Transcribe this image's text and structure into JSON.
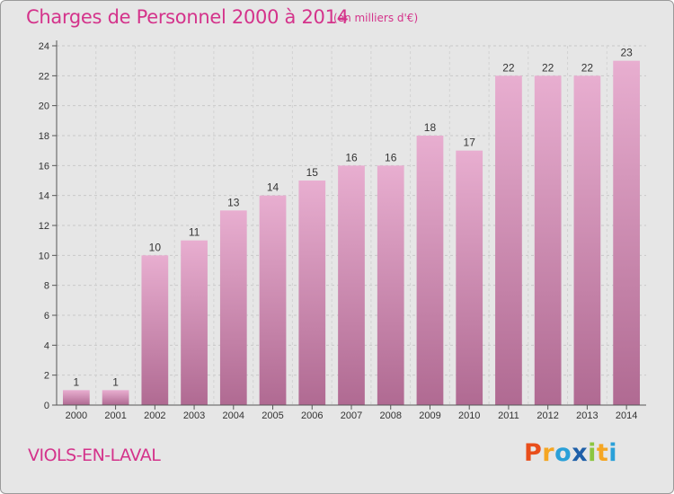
{
  "header": {
    "title": "Charges de Personnel 2000 à 2014",
    "subtitle": "(en milliers d'€)"
  },
  "footer": {
    "commune": "VIOLS-EN-LAVAL",
    "logo_letters": [
      "P",
      "r",
      "o",
      "x",
      "i",
      "t",
      "i"
    ]
  },
  "colors": {
    "title": "#d4338b",
    "bar_top": "#e8aed0",
    "bar_bottom": "#b06a92",
    "background": "#e6e6e6",
    "logo": [
      "#e94e1b",
      "#f5a623",
      "#2aa0d8",
      "#1f5fa8",
      "#8cc63f",
      "#f5a623",
      "#2aa0d8"
    ]
  },
  "chart_data": {
    "type": "bar",
    "categories": [
      "2000",
      "2001",
      "2002",
      "2003",
      "2004",
      "2005",
      "2006",
      "2007",
      "2008",
      "2009",
      "2010",
      "2011",
      "2012",
      "2013",
      "2014"
    ],
    "values": [
      1,
      1,
      10,
      11,
      13,
      14,
      15,
      16,
      16,
      18,
      17,
      22,
      22,
      22,
      23
    ],
    "title": "Charges de Personnel 2000 à 2014",
    "subtitle": "(en milliers d'€)",
    "ylim": [
      0,
      24
    ],
    "yticks": [
      0,
      2,
      4,
      6,
      8,
      10,
      12,
      14,
      16,
      18,
      20,
      22,
      24
    ],
    "grid": true,
    "legend": "none"
  }
}
